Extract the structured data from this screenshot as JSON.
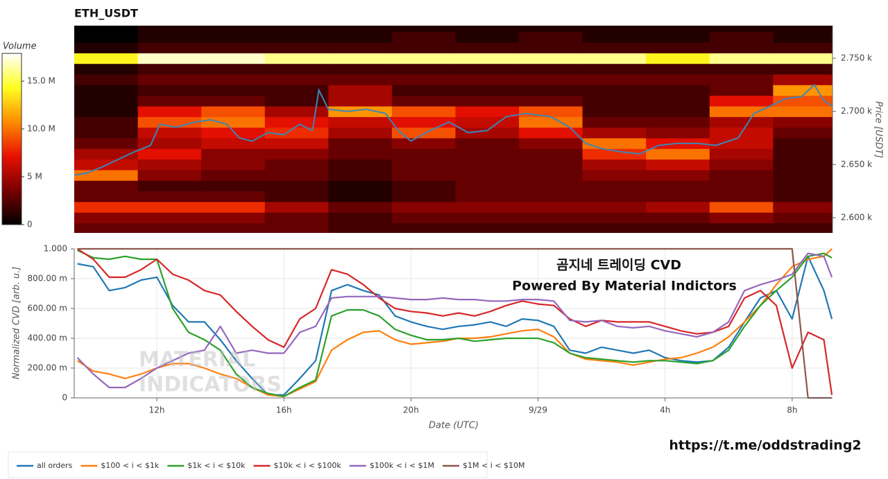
{
  "chart_data": [
    {
      "type": "heatmap",
      "title": "ETH_USDT",
      "y_label": "Price [USDT]",
      "xlim": [
        9.4,
        33.27
      ],
      "ylim": [
        2585.6,
        2780.7
      ],
      "yticks": [
        {
          "value": 2600,
          "label": "2.600 k"
        },
        {
          "value": 2650,
          "label": "2.650 k"
        },
        {
          "value": 2700,
          "label": "2.700 k"
        },
        {
          "value": 2750,
          "label": "2.750 k"
        }
      ],
      "xbins": [
        9.4,
        11.4,
        13.4,
        15.4,
        17.4,
        19.4,
        21.4,
        23.4,
        25.4,
        27.4,
        29.4,
        31.4,
        33.27
      ],
      "ybins": [
        2585,
        2595,
        2605,
        2615,
        2625,
        2635,
        2645,
        2655,
        2665,
        2675,
        2685,
        2695,
        2705,
        2715,
        2725,
        2735,
        2745,
        2755,
        2765,
        2775,
        2785
      ],
      "values": [
        [
          3,
          3,
          3,
          3,
          2,
          2,
          2,
          2,
          2,
          2,
          2,
          2
        ],
        [
          4,
          4,
          4,
          3,
          2,
          3,
          3,
          3,
          3,
          3,
          4,
          3
        ],
        [
          8,
          8,
          8,
          5,
          3,
          4,
          4,
          4,
          4,
          5,
          9,
          4
        ],
        [
          3,
          3,
          3,
          2,
          1,
          2,
          3,
          3,
          3,
          3,
          3,
          2
        ],
        [
          3,
          2,
          2,
          2,
          1,
          2,
          3,
          3,
          3,
          3,
          3,
          2
        ],
        [
          10,
          4,
          3,
          3,
          2,
          3,
          3,
          3,
          4,
          4,
          3,
          2
        ],
        [
          6,
          5,
          4,
          3,
          2,
          3,
          3,
          3,
          5,
          6,
          4,
          2
        ],
        [
          5,
          7,
          4,
          4,
          3,
          3,
          3,
          3,
          8,
          10,
          5,
          2
        ],
        [
          3,
          5,
          6,
          6,
          3,
          4,
          3,
          4,
          10,
          7,
          6,
          2
        ],
        [
          2,
          6,
          7,
          8,
          5,
          9,
          5,
          7,
          5,
          4,
          6,
          3
        ],
        [
          2,
          9,
          10,
          7,
          6,
          7,
          6,
          10,
          3,
          3,
          5,
          4
        ],
        [
          1,
          7,
          9,
          5,
          11,
          9,
          7,
          9,
          2,
          2,
          10,
          10
        ],
        [
          1,
          3,
          3,
          2,
          5,
          3,
          3,
          3,
          2,
          2,
          7,
          9
        ],
        [
          1,
          2,
          2,
          2,
          5,
          2,
          2,
          2,
          2,
          2,
          3,
          11
        ],
        [
          2,
          3,
          3,
          3,
          3,
          3,
          3,
          3,
          3,
          3,
          3,
          5
        ],
        [
          1,
          2,
          2,
          2,
          2,
          2,
          2,
          2,
          2,
          2,
          2,
          2
        ],
        [
          14,
          17,
          17,
          16,
          16,
          16,
          16,
          16,
          16,
          14,
          16,
          16
        ],
        [
          1,
          2,
          2,
          2,
          2,
          2,
          2,
          2,
          2,
          2,
          2,
          2
        ],
        [
          0,
          1,
          1,
          1,
          1,
          2,
          1,
          2,
          1,
          1,
          2,
          1
        ],
        [
          0,
          1,
          1,
          1,
          1,
          1,
          1,
          1,
          1,
          1,
          1,
          1
        ]
      ],
      "colorbar": {
        "label": "Volume",
        "clim": [
          0,
          17.9
        ],
        "ticks": [
          0,
          {
            "value": 5,
            "label": "5 M"
          },
          {
            "value": 10,
            "label": "10.0 M"
          },
          {
            "value": 15,
            "label": "15.0 M"
          }
        ],
        "colors": [
          "#000000",
          "#7a0000",
          "#e81000",
          "#ff8c00",
          "#ffff20",
          "#ffffff"
        ]
      },
      "line": {
        "color": "#3a87b8",
        "x": [
          9.4,
          9.8,
          10.3,
          10.8,
          11.3,
          11.8,
          12.1,
          12.6,
          13.2,
          13.7,
          14.2,
          14.6,
          15.0,
          15.5,
          16.0,
          16.5,
          16.9,
          17.1,
          17.4,
          18.0,
          18.6,
          19.2,
          19.6,
          20.0,
          20.6,
          21.2,
          21.8,
          22.4,
          23.0,
          23.6,
          24.4,
          25.0,
          25.5,
          26.0,
          26.6,
          27.2,
          27.8,
          28.4,
          29.0,
          29.6,
          30.3,
          30.8,
          31.3,
          31.8,
          32.3,
          32.7,
          33.0,
          33.27
        ],
        "values": [
          2640,
          2642,
          2648,
          2655,
          2662,
          2668,
          2688,
          2685,
          2690,
          2692,
          2688,
          2675,
          2672,
          2680,
          2678,
          2688,
          2682,
          2720,
          2702,
          2700,
          2702,
          2698,
          2682,
          2672,
          2682,
          2690,
          2680,
          2682,
          2695,
          2698,
          2695,
          2685,
          2670,
          2665,
          2662,
          2660,
          2668,
          2670,
          2670,
          2668,
          2675,
          2698,
          2705,
          2712,
          2714,
          2725,
          2710,
          2705
        ]
      }
    },
    {
      "type": "line",
      "y_label": "Normalized CVD [arb. u.]",
      "x_label": "Date (UTC)",
      "grid": true,
      "xlim": [
        9.4,
        33.27
      ],
      "ylim": [
        0,
        1
      ],
      "xticks": [
        {
          "value": 12,
          "label": "12h"
        },
        {
          "value": 16,
          "label": "16h"
        },
        {
          "value": 20,
          "label": "20h"
        },
        {
          "value": 24,
          "label": "9/29"
        },
        {
          "value": 28,
          "label": "4h"
        },
        {
          "value": 32,
          "label": "8h"
        }
      ],
      "yticks": [
        0,
        {
          "value": 0.2,
          "label": "200.00 m"
        },
        {
          "value": 0.4,
          "label": "400.00 m"
        },
        {
          "value": 0.6,
          "label": "600.00 m"
        },
        {
          "value": 0.8,
          "label": "800.00 m"
        },
        {
          "value": 1,
          "label": "1.000"
        }
      ],
      "annotations": [
        "곰지네 트레이딩 CVD",
        "Powered By Material Indictors"
      ],
      "watermark": [
        "MATERIAL",
        "INDICATORS"
      ],
      "x": [
        9.5,
        10,
        10.5,
        11,
        11.5,
        12,
        12.5,
        13,
        13.5,
        14,
        14.5,
        15,
        15.5,
        16,
        16.5,
        17,
        17.5,
        18,
        18.5,
        19,
        19.5,
        20,
        20.5,
        21,
        21.5,
        22,
        22.5,
        23,
        23.5,
        24,
        24.5,
        25,
        25.5,
        26,
        26.5,
        27,
        27.5,
        28,
        28.5,
        29,
        29.5,
        30,
        30.5,
        31,
        31.5,
        32,
        32.5,
        33,
        33.25
      ],
      "series": [
        {
          "name": "all orders",
          "color": "#1f77b4",
          "values": [
            0.9,
            0.88,
            0.72,
            0.74,
            0.79,
            0.81,
            0.62,
            0.51,
            0.51,
            0.39,
            0.25,
            0.13,
            0.02,
            0.02,
            0.13,
            0.25,
            0.72,
            0.76,
            0.72,
            0.69,
            0.55,
            0.51,
            0.48,
            0.46,
            0.48,
            0.49,
            0.51,
            0.48,
            0.53,
            0.52,
            0.48,
            0.32,
            0.3,
            0.34,
            0.32,
            0.3,
            0.32,
            0.27,
            0.25,
            0.24,
            0.25,
            0.34,
            0.51,
            0.67,
            0.72,
            0.53,
            0.95,
            0.72,
            0.53
          ]
        },
        {
          "name": "$100 < i < $1k",
          "color": "#ff7f0e",
          "values": [
            0.25,
            0.18,
            0.16,
            0.13,
            0.16,
            0.2,
            0.23,
            0.23,
            0.2,
            0.16,
            0.13,
            0.07,
            0.02,
            0.01,
            0.06,
            0.11,
            0.32,
            0.39,
            0.44,
            0.45,
            0.39,
            0.36,
            0.37,
            0.38,
            0.4,
            0.4,
            0.41,
            0.43,
            0.45,
            0.46,
            0.41,
            0.3,
            0.26,
            0.25,
            0.24,
            0.22,
            0.24,
            0.26,
            0.27,
            0.3,
            0.34,
            0.41,
            0.51,
            0.62,
            0.76,
            0.88,
            0.93,
            0.95,
            1.0
          ]
        },
        {
          "name": "$1k < i < $10k",
          "color": "#2ca02c",
          "values": [
            0.99,
            0.94,
            0.93,
            0.95,
            0.93,
            0.93,
            0.6,
            0.44,
            0.39,
            0.32,
            0.16,
            0.07,
            0.03,
            0.01,
            0.07,
            0.12,
            0.55,
            0.59,
            0.59,
            0.55,
            0.46,
            0.42,
            0.39,
            0.39,
            0.4,
            0.38,
            0.39,
            0.4,
            0.4,
            0.4,
            0.37,
            0.3,
            0.27,
            0.26,
            0.25,
            0.24,
            0.25,
            0.25,
            0.24,
            0.23,
            0.25,
            0.32,
            0.48,
            0.62,
            0.72,
            0.81,
            0.95,
            0.97,
            0.94
          ]
        },
        {
          "name": "$10k < i < $100k",
          "color": "#d62728",
          "values": [
            1.0,
            0.93,
            0.81,
            0.81,
            0.86,
            0.93,
            0.83,
            0.79,
            0.72,
            0.69,
            0.58,
            0.48,
            0.39,
            0.34,
            0.53,
            0.6,
            0.86,
            0.83,
            0.76,
            0.67,
            0.6,
            0.58,
            0.57,
            0.55,
            0.57,
            0.55,
            0.58,
            0.62,
            0.65,
            0.63,
            0.62,
            0.53,
            0.48,
            0.52,
            0.51,
            0.51,
            0.51,
            0.48,
            0.45,
            0.43,
            0.44,
            0.48,
            0.67,
            0.72,
            0.62,
            0.2,
            0.44,
            0.39,
            0.02
          ]
        },
        {
          "name": "$100k < i < $1M",
          "color": "#9467bd",
          "values": [
            0.27,
            0.16,
            0.07,
            0.07,
            0.13,
            0.2,
            0.25,
            0.3,
            0.32,
            0.48,
            0.3,
            0.32,
            0.3,
            0.3,
            0.44,
            0.48,
            0.67,
            0.68,
            0.68,
            0.68,
            0.67,
            0.66,
            0.66,
            0.67,
            0.66,
            0.66,
            0.65,
            0.65,
            0.66,
            0.66,
            0.65,
            0.52,
            0.51,
            0.52,
            0.48,
            0.47,
            0.48,
            0.45,
            0.43,
            0.41,
            0.44,
            0.51,
            0.72,
            0.76,
            0.79,
            0.83,
            0.97,
            0.95,
            0.81
          ]
        },
        {
          "name": "$1M < i < $10M",
          "color": "#8c564b",
          "values": [
            1,
            1,
            1,
            1,
            1,
            1,
            1,
            1,
            1,
            1,
            1,
            1,
            1,
            1,
            1,
            1,
            1,
            1,
            1,
            1,
            1,
            1,
            1,
            1,
            1,
            1,
            1,
            1,
            1,
            1,
            1,
            1,
            1,
            1,
            1,
            1,
            1,
            1,
            1,
            1,
            1,
            1,
            1,
            1,
            1,
            1,
            0,
            0,
            0
          ]
        }
      ]
    }
  ],
  "link": "https://t.me/oddstrading2"
}
